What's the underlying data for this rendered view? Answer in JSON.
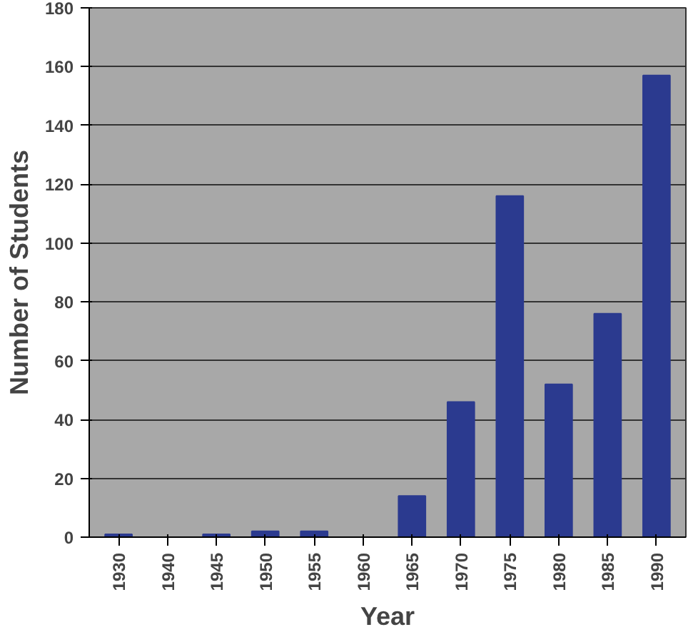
{
  "chart_data": {
    "type": "bar",
    "xlabel": "Year",
    "ylabel": "Number of Students",
    "categories": [
      "1930",
      "1940",
      "1945",
      "1950",
      "1955",
      "1960",
      "1965",
      "1970",
      "1975",
      "1980",
      "1985",
      "1990"
    ],
    "values": [
      1,
      0,
      1,
      2,
      2,
      0,
      14,
      46,
      116,
      52,
      76,
      157
    ],
    "color": "#2b3a8f",
    "ylim": [
      0,
      180
    ],
    "yticks": [
      0,
      20,
      40,
      60,
      80,
      100,
      120,
      140,
      160,
      180
    ],
    "grid": "y"
  }
}
